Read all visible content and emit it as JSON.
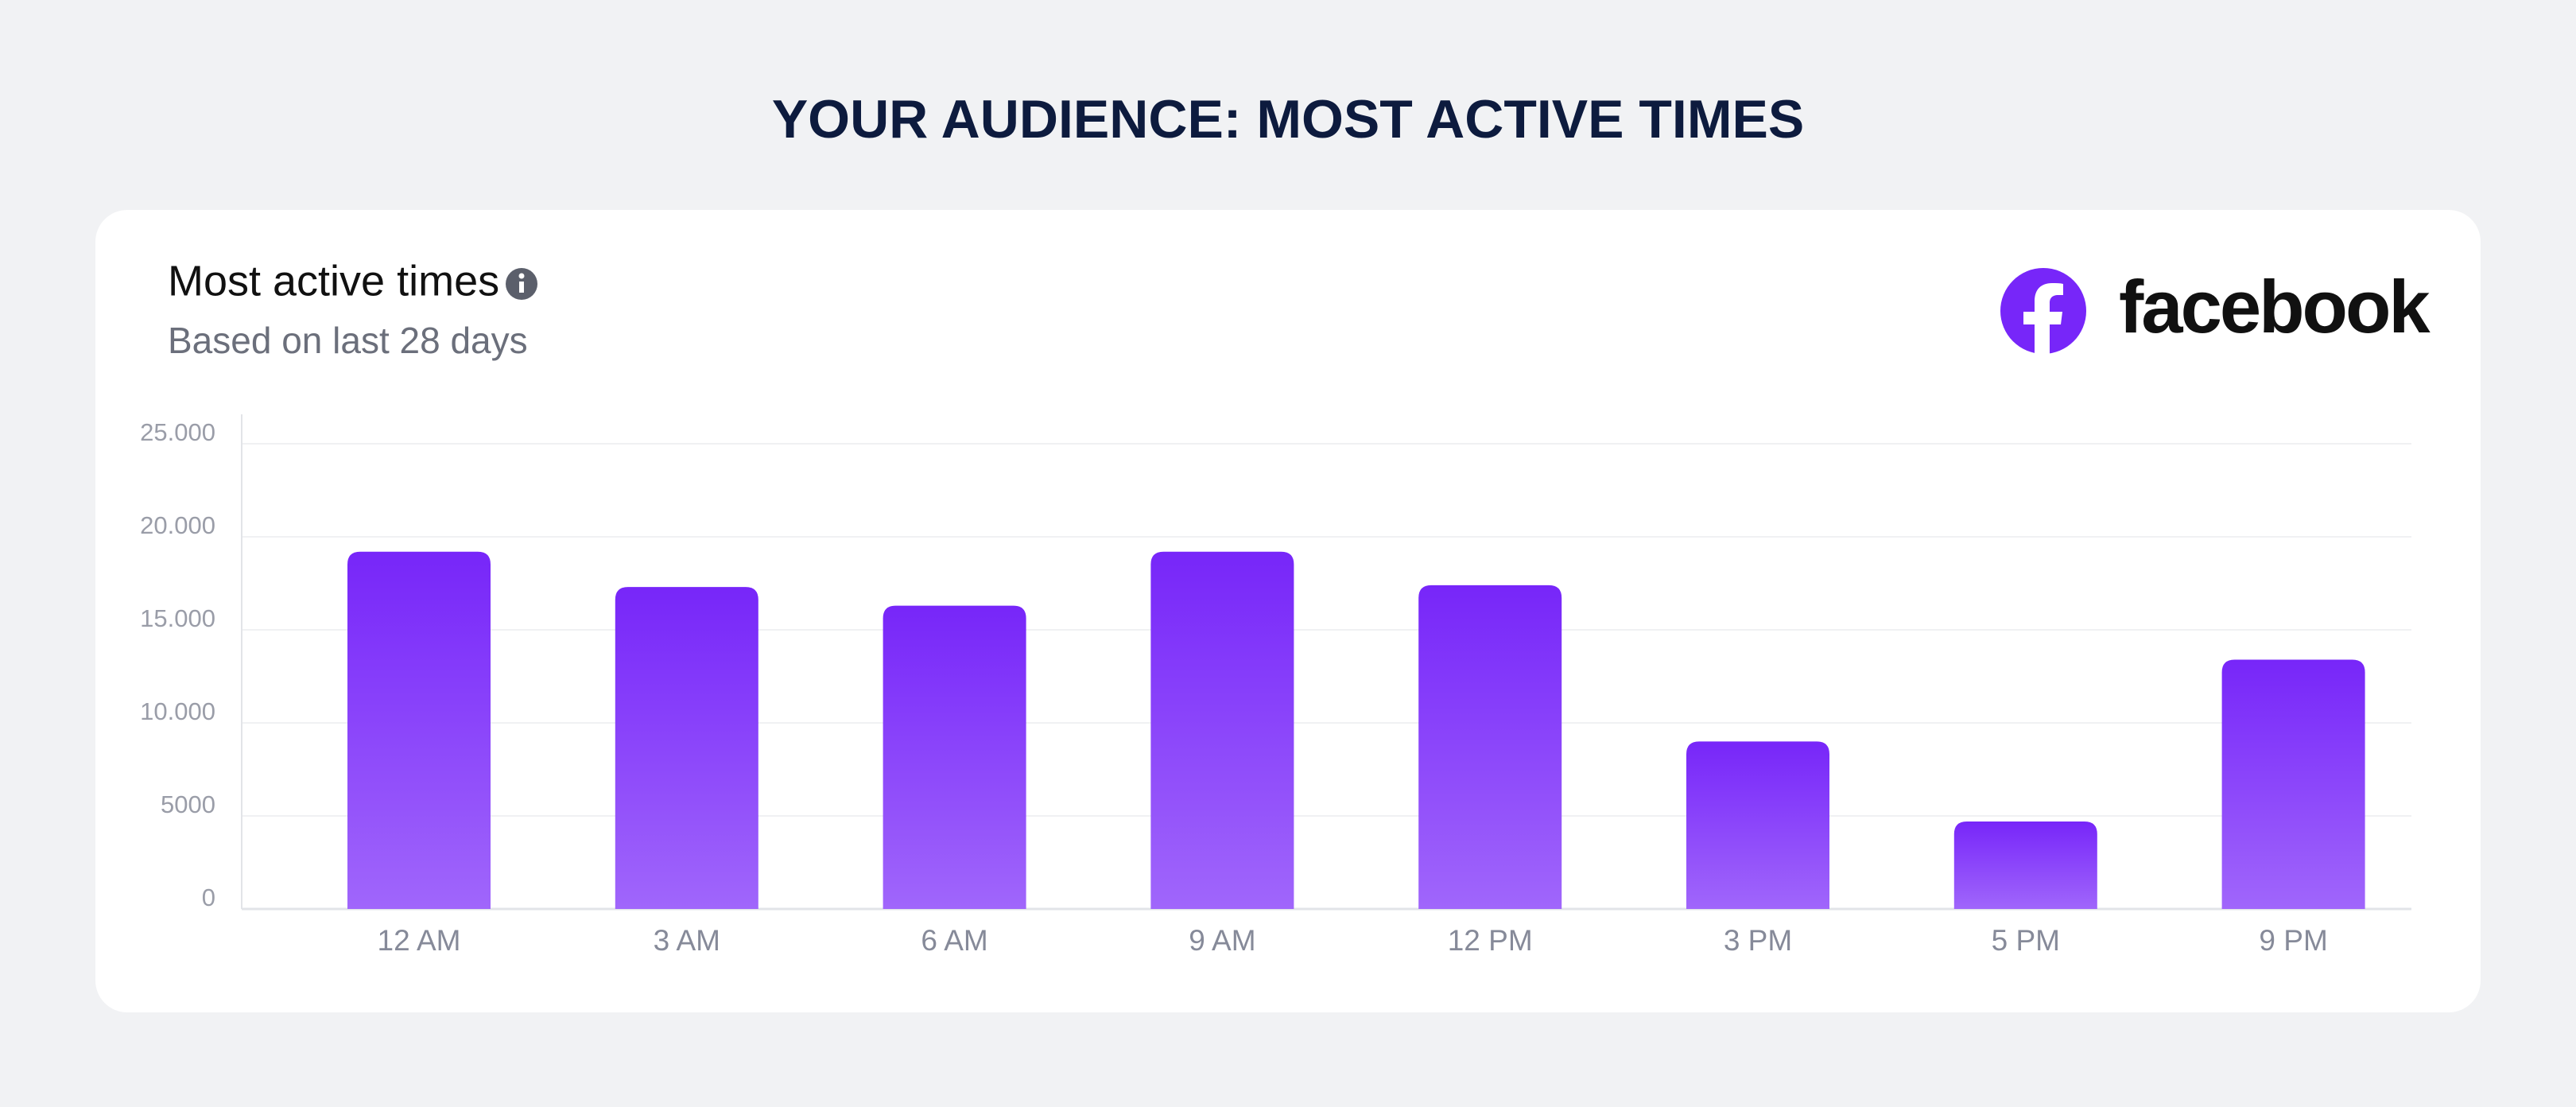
{
  "chart_data": {
    "type": "bar",
    "title": "YOUR AUDIENCE: MOST ACTIVE TIMES",
    "card_title": "Most active times",
    "subtitle": "Based on last 28 days",
    "brand": "facebook",
    "categories": [
      "12 AM",
      "3 AM",
      "6 AM",
      "9 AM",
      "12 PM",
      "3 PM",
      "5 PM",
      "9 PM"
    ],
    "values": [
      19200,
      17300,
      16300,
      19200,
      17400,
      9000,
      4700,
      13400
    ],
    "color": "#7726f9",
    "ylim": [
      0,
      25000
    ],
    "yticks": [
      0,
      5000,
      {
        "value": 10000,
        "label": "10.000"
      },
      {
        "value": 15000,
        "label": "15.000"
      },
      {
        "value": 20000,
        "label": "20.000"
      },
      {
        "value": 25000,
        "label": "25.000"
      }
    ],
    "grid": true
  }
}
